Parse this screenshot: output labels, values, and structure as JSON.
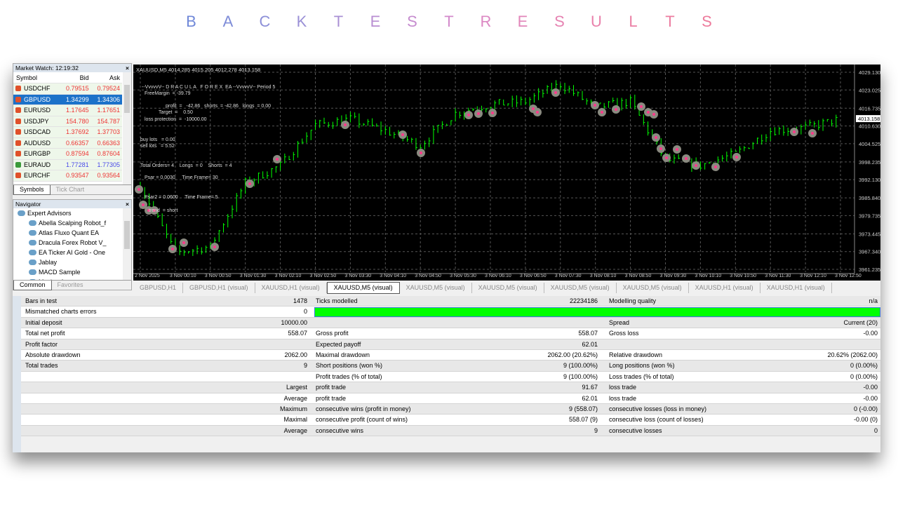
{
  "page_title": [
    "B",
    "A",
    "C",
    "K",
    "T",
    "E",
    "S",
    "T",
    "R",
    "E",
    "S",
    "U",
    "L",
    "T",
    "S"
  ],
  "title_colors": [
    "#7088d8",
    "#7e8cd8",
    "#8c8fd8",
    "#9a90d6",
    "#a990d4",
    "#b98ed2",
    "#c68ccf",
    "#d38acb",
    "#dc88c3",
    "#e286ba",
    "#e683b2",
    "#e981ab",
    "#eb7fa5",
    "#ec7da0",
    "#ed7b9c"
  ],
  "market_watch": {
    "title": "Market Watch: 12:19:32",
    "headers": [
      "Symbol",
      "Bid",
      "Ask"
    ],
    "rows": [
      {
        "symbol": "USDCHF",
        "bid": "0.79515",
        "ask": "0.79524",
        "dir": "down"
      },
      {
        "symbol": "GBPUSD",
        "bid": "1.34299",
        "ask": "1.34306",
        "dir": "down",
        "selected": true
      },
      {
        "symbol": "EURUSD",
        "bid": "1.17645",
        "ask": "1.17651",
        "dir": "down"
      },
      {
        "symbol": "USDJPY",
        "bid": "154.780",
        "ask": "154.787",
        "dir": "down"
      },
      {
        "symbol": "USDCAD",
        "bid": "1.37692",
        "ask": "1.37703",
        "dir": "down"
      },
      {
        "symbol": "AUDUSD",
        "bid": "0.66357",
        "ask": "0.66363",
        "dir": "down"
      },
      {
        "symbol": "EURGBP",
        "bid": "0.87594",
        "ask": "0.87604",
        "dir": "down"
      },
      {
        "symbol": "EURAUD",
        "bid": "1.77281",
        "ask": "1.77305",
        "dir": "up"
      },
      {
        "symbol": "EURCHF",
        "bid": "0.93547",
        "ask": "0.93564",
        "dir": "down"
      }
    ],
    "tabs": [
      "Symbols",
      "Tick Chart"
    ]
  },
  "navigator": {
    "title": "Navigator",
    "root": "Expert Advisors",
    "items": [
      "Abella Scalping Robot_f",
      "Atlas Fluxo Quant EA",
      "Dracula Forex Robot  V_",
      "EA Ticker AI Gold - One",
      "Jablay",
      "MACD Sample",
      "Moving A"
    ],
    "tabs": [
      "Common",
      "Favorites"
    ]
  },
  "chart": {
    "header": "XAUUSD,M5  4014.285 4015.205 4012.278 4013.158",
    "overlay": [
      "--VvvvvV-- D R A C U L A   F O R E X  EA --VvvvvV-- Period 5",
      "FreeMargin  = -39.79",
      "profit  =   -42.86   shorts  = -42.86   longs  = 0.00",
      "Target  =    0.50",
      "loss protection  =  -10000.00",
      "buy lots   = 0.00",
      "sell lots   = 5.52",
      "Total Orders= 4    Longs  = 0    Shorts  = 4",
      "Psar = 0.0030     Time Frame= 30",
      "Psar2 = 0.0600     Time Frame= 5",
      "trend  = short"
    ],
    "price_ticks": [
      "4029.130",
      "4023.025",
      "4016.735",
      "4010.630",
      "4004.525",
      "3998.235",
      "3992.130",
      "3985.840",
      "3979.735",
      "3973.445",
      "3967.340",
      "3961.235"
    ],
    "current_price": "4013.158",
    "time_ticks": [
      "2 Nov 2025",
      "3 Nov 00:10",
      "3 Nov 00:50",
      "3 Nov 01:30",
      "3 Nov 02:10",
      "3 Nov 02:50",
      "3 Nov 03:30",
      "3 Nov 04:10",
      "3 Nov 04:50",
      "3 Nov 05:30",
      "3 Nov 06:10",
      "3 Nov 06:50",
      "3 Nov 07:30",
      "3 Nov 08:10",
      "3 Nov 08:50",
      "3 Nov 09:30",
      "3 Nov 10:10",
      "3 Nov 10:50",
      "3 Nov 11:30",
      "3 Nov 12:10",
      "3 Nov 12:50"
    ],
    "approx_close_at_ticks": [
      3990,
      3967,
      3969,
      3991,
      3997,
      4011,
      4013,
      4009,
      4004,
      4015,
      4018,
      4019,
      4025,
      4017,
      4019,
      3999,
      3997,
      4001,
      4009,
      4010,
      4013
    ],
    "ylim": [
      3961.235,
      4029.13
    ],
    "candle_color": "#00ff00"
  },
  "chart_tabs": [
    "GBPUSD,H1",
    "GBPUSD,H1 (visual)",
    "XAUUSD,H1 (visual)",
    "XAUUSD,M5 (visual)",
    "XAUUSD,M5 (visual)",
    "XAUUSD,M5 (visual)",
    "XAUUSD,M5 (visual)",
    "XAUUSD,M5 (visual)",
    "XAUUSD,H1 (visual)",
    "XAUUSD,H1 (visual)"
  ],
  "report": {
    "modelling_quality_fill": 1.0,
    "rows": [
      [
        "Bars in test",
        "1478",
        "Ticks modelled",
        "22234186",
        "Modelling quality",
        "n/a"
      ],
      [
        "Mismatched charts errors",
        "0",
        "",
        "",
        "",
        ""
      ],
      [
        "Initial deposit",
        "10000.00",
        "",
        "",
        "Spread",
        "Current (20)"
      ],
      [
        "Total net profit",
        "558.07",
        "Gross profit",
        "558.07",
        "Gross loss",
        "-0.00"
      ],
      [
        "Profit factor",
        "",
        "Expected payoff",
        "62.01",
        "",
        ""
      ],
      [
        "Absolute drawdown",
        "2062.00",
        "Maximal drawdown",
        "2062.00 (20.62%)",
        "Relative drawdown",
        "20.62% (2062.00)"
      ],
      [
        "Total trades",
        "9",
        "Short positions (won %)",
        "9 (100.00%)",
        "Long positions (won %)",
        "0 (0.00%)"
      ],
      [
        "",
        "",
        "Profit trades (% of total)",
        "9 (100.00%)",
        "Loss trades (% of total)",
        "0 (0.00%)"
      ],
      [
        "",
        "Largest",
        "profit trade",
        "91.67",
        "loss trade",
        "-0.00"
      ],
      [
        "",
        "Average",
        "profit trade",
        "62.01",
        "loss trade",
        "-0.00"
      ],
      [
        "",
        "Maximum",
        "consecutive wins (profit in money)",
        "9 (558.07)",
        "consecutive losses (loss in money)",
        "0 (-0.00)"
      ],
      [
        "",
        "Maximal",
        "consecutive profit (count of wins)",
        "558.07 (9)",
        "consecutive loss (count of losses)",
        "-0.00 (0)"
      ],
      [
        "",
        "Average",
        "consecutive wins",
        "9",
        "consecutive losses",
        "0"
      ]
    ]
  }
}
